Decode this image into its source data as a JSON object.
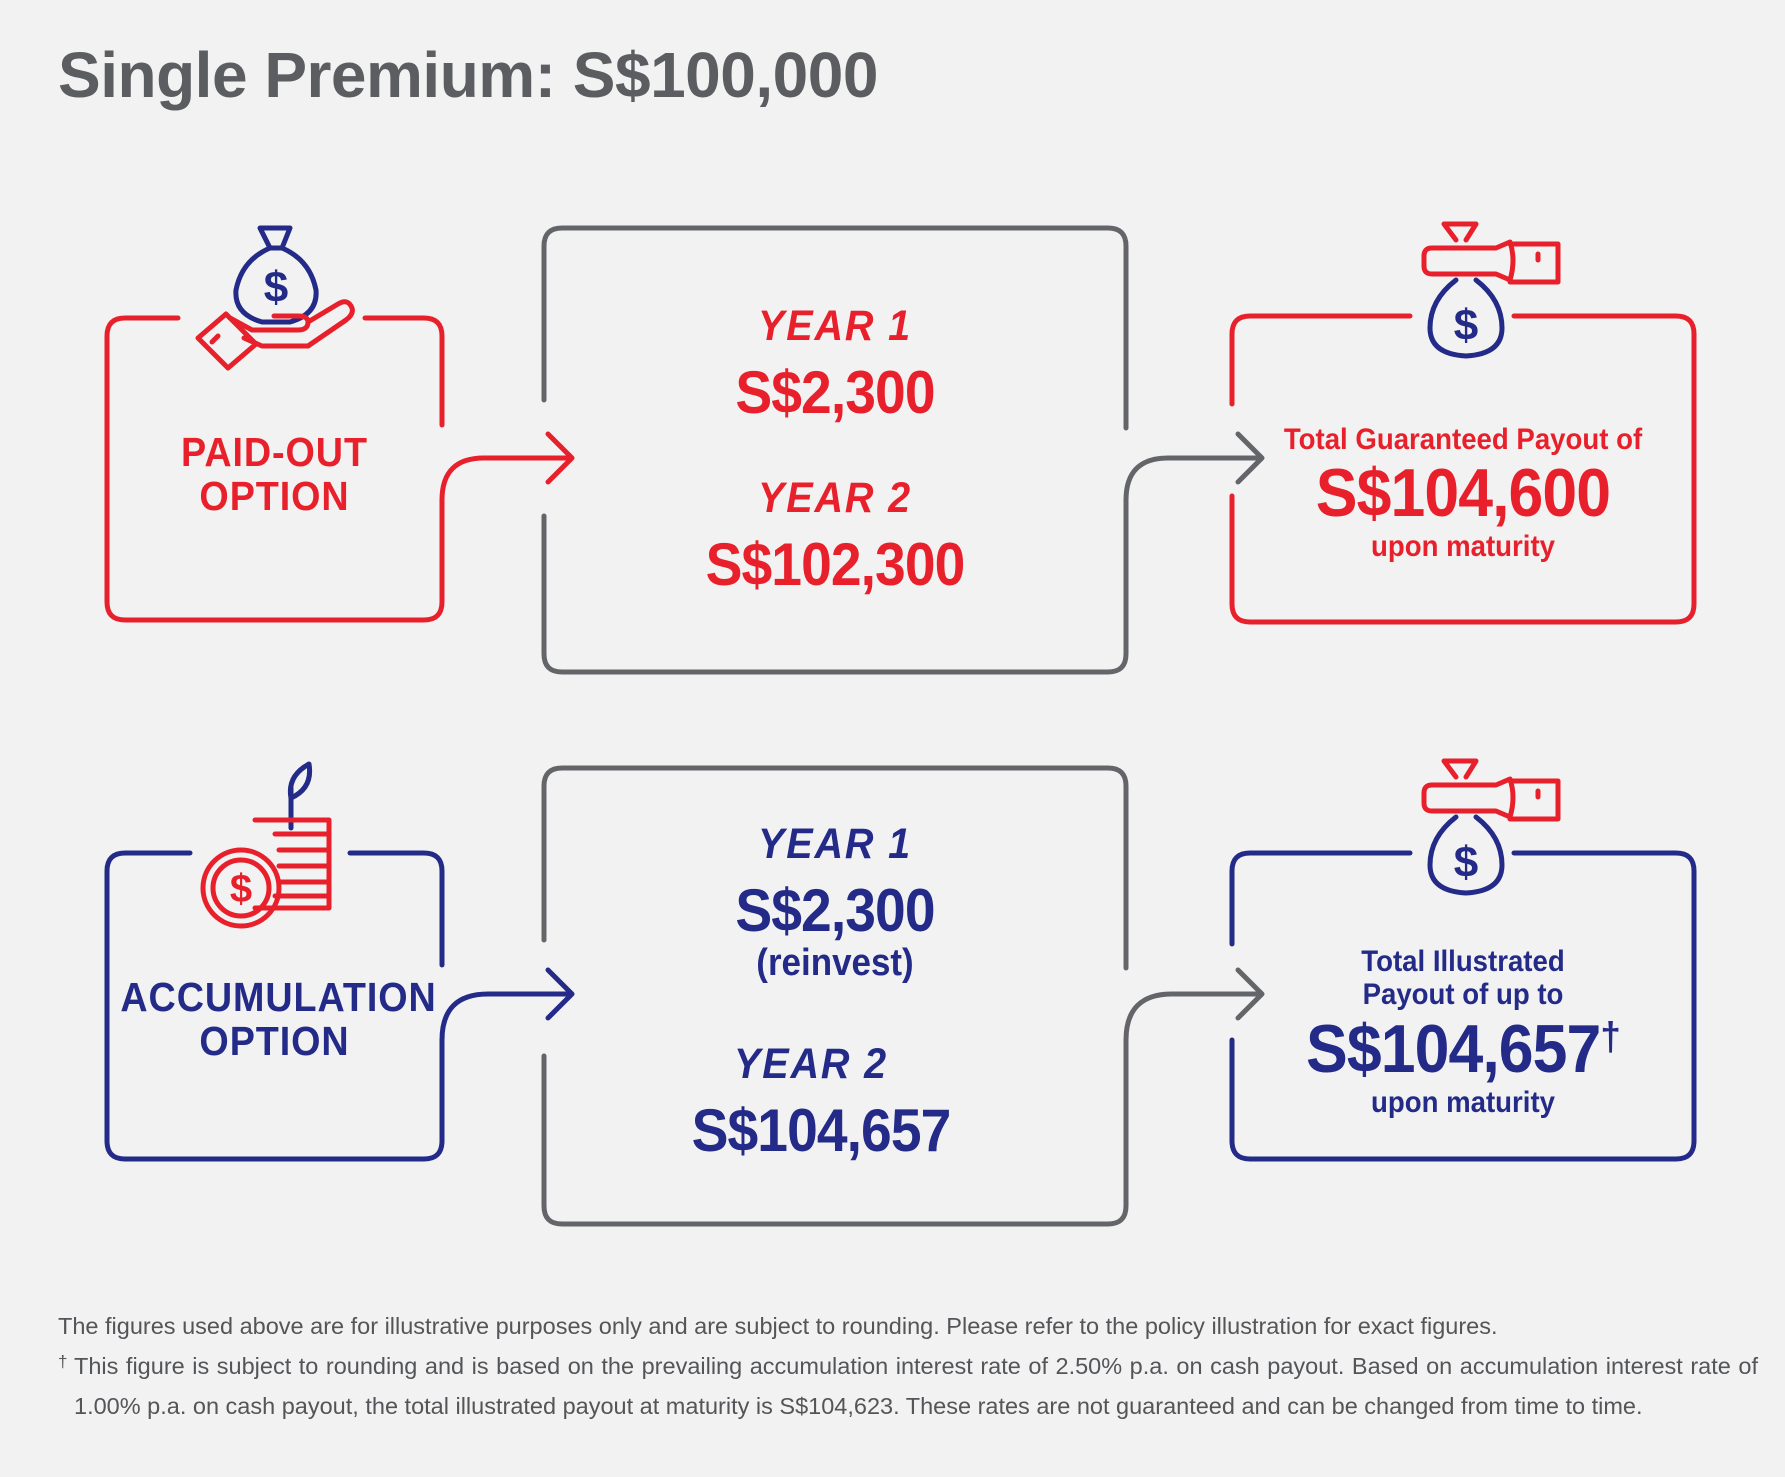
{
  "title": "Single Premium: S$100,000",
  "colors": {
    "red": "#e8202b",
    "blue": "#232a88",
    "grey": "#5c5d60"
  },
  "paid_out": {
    "option_label_line1": "PAID-OUT",
    "option_label_line2": "OPTION",
    "year1_label": "YEAR 1",
    "year1_amount": "S$2,300",
    "year2_label": "YEAR 2",
    "year2_amount": "S$102,300",
    "result_line1": "Total Guaranteed Payout of",
    "result_amount": "S$104,600",
    "result_line2": "upon maturity",
    "option_icon": "hand-holding-money-bag-icon",
    "result_icon": "hand-giving-money-bag-icon"
  },
  "accumulation": {
    "option_label_line1": "ACCUMULATION",
    "option_label_line2": "OPTION",
    "year1_label": "YEAR 1",
    "year1_amount": "S$2,300",
    "year1_note": "(reinvest)",
    "year2_label": "YEAR 2",
    "year2_amount": "S$104,657",
    "result_line1": "Total Illustrated",
    "result_line1b": "Payout of up to",
    "result_amount": "S$104,657",
    "result_mark": "†",
    "result_line2": "upon maturity",
    "option_icon": "coin-stack-sprout-icon",
    "result_icon": "hand-giving-money-bag-icon"
  },
  "footnotes": {
    "line1": "The figures used above are for illustrative purposes only and are subject to rounding. Please refer to the policy illustration for exact figures.",
    "dagger": "†",
    "line2": "This figure is subject to rounding and is based on the prevailing accumulation interest rate of 2.50% p.a. on cash payout. Based on accumulation interest rate of 1.00% p.a. on cash payout, the total illustrated payout at maturity is S$104,623. These rates are not guaranteed and can be changed from time to time."
  }
}
